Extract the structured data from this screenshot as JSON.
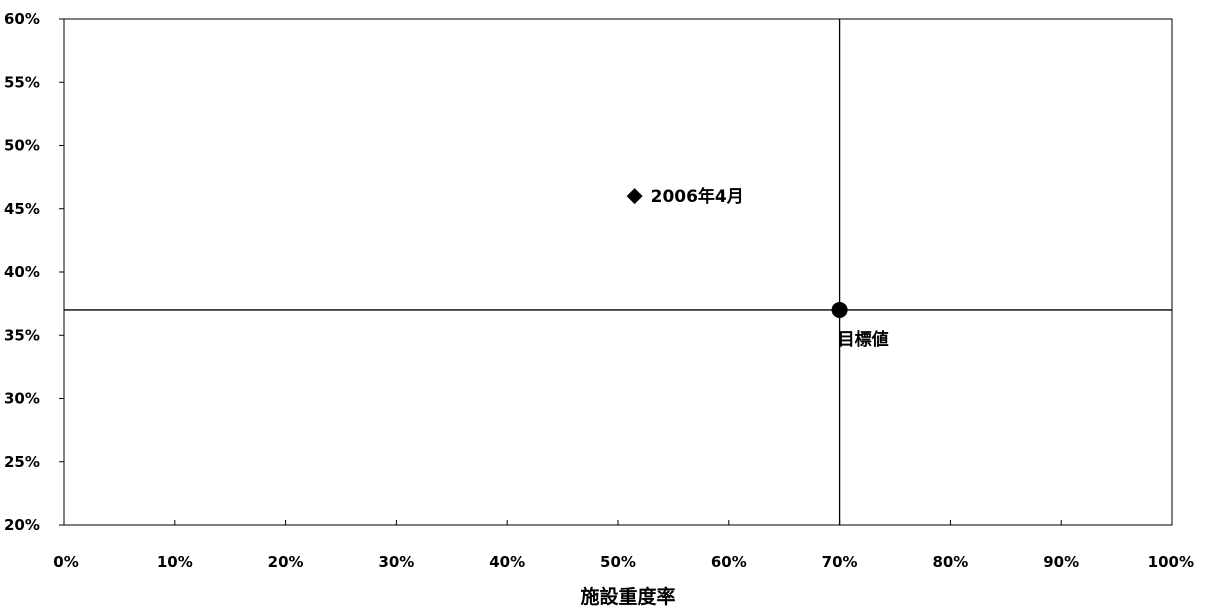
{
  "chart_data": {
    "type": "scatter",
    "title": "",
    "xlabel": "施設重度率",
    "ylabel": "",
    "xlim": [
      0,
      100
    ],
    "ylim": [
      20,
      60
    ],
    "x_ticks": [
      "0%",
      "10%",
      "20%",
      "30%",
      "40%",
      "50%",
      "60%",
      "70%",
      "80%",
      "90%",
      "100%"
    ],
    "y_ticks": [
      "20%",
      "25%",
      "30%",
      "35%",
      "40%",
      "45%",
      "50%",
      "55%",
      "60%"
    ],
    "grid": false,
    "series": [
      {
        "name": "2006年4月",
        "marker": "diamond",
        "points": [
          {
            "x": 51.5,
            "y": 46
          }
        ]
      },
      {
        "name": "目標値",
        "marker": "circle",
        "points": [
          {
            "x": 70,
            "y": 37
          }
        ]
      }
    ],
    "reference_lines": {
      "x": 70,
      "y": 37
    },
    "colors": {
      "marker": "#000000",
      "axis": "#000000"
    }
  }
}
